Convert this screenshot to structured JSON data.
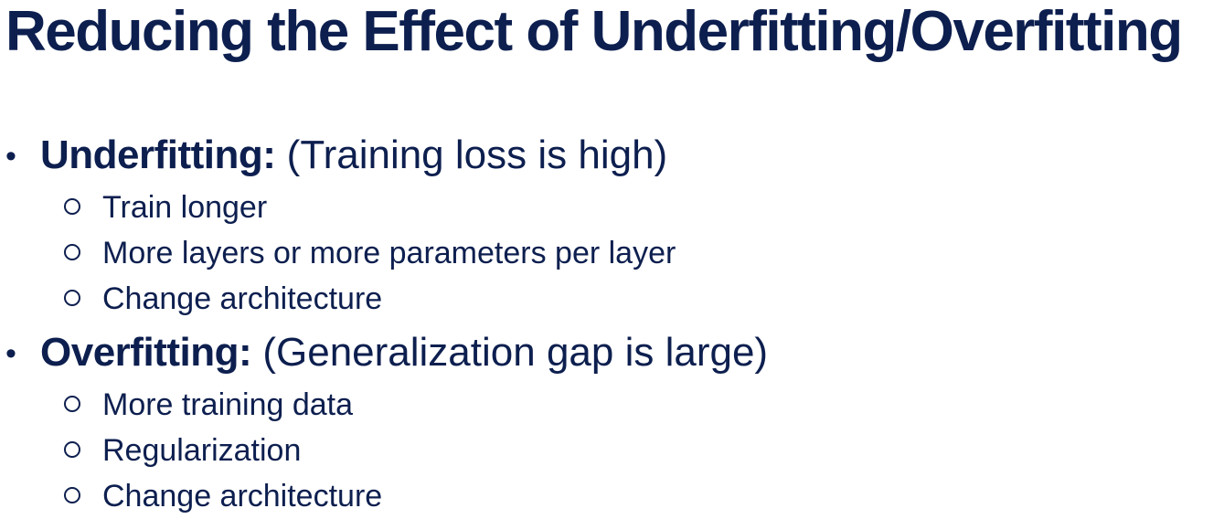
{
  "slide": {
    "title": "Reducing the Effect of Underfitting/Overfitting",
    "sections": [
      {
        "term": "Underfitting:",
        "description": "(Training loss is high)",
        "items": [
          "Train longer",
          "More layers or more parameters per layer",
          "Change architecture"
        ]
      },
      {
        "term": "Overfitting:",
        "description": "(Generalization gap is large)",
        "items": [
          "More training data",
          "Regularization",
          "Change architecture"
        ]
      }
    ]
  },
  "colors": {
    "text": "#0d1f4f",
    "background": "#ffffff"
  },
  "icons": {
    "bullet": "bullet-dot-icon",
    "sub_bullet": "hollow-circle-icon"
  }
}
